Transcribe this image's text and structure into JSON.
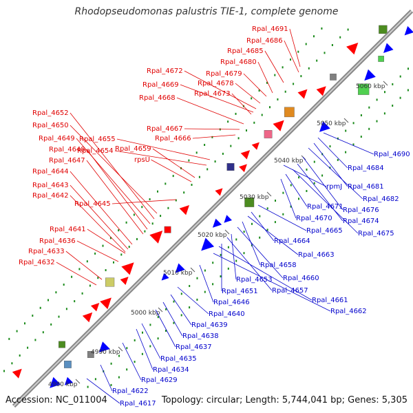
{
  "title": "Rhodopseudomonas palustris TIE-1, complete genome",
  "accession": "Accession: NC_011004",
  "topology": "Topology: circular; Length: 5,744,041 bp; Genes: 5,305",
  "colors": {
    "forward_label": "#e00000",
    "reverse_label": "#0000cc",
    "forward_arrow": "#ff0000",
    "reverse_arrow": "#0000ff",
    "backbone": "#888888",
    "gc_dots": "#1a8a1a"
  },
  "ticks": [
    "4980 kbp",
    "4990 kbp",
    "5000 kbp",
    "5010 kbp",
    "5020 kbp",
    "5030 kbp",
    "5040 kbp",
    "5050 kbp",
    "5060 kbp"
  ],
  "forward_genes": [
    "Rpal_4691",
    "Rpal_4686",
    "Rpal_4685",
    "Rpal_4680",
    "Rpal_4679",
    "Rpal_4678",
    "Rpal_4672",
    "Rpal_4669",
    "Rpal_4673",
    "Rpal_4668",
    "Rpal_4667",
    "Rpal_4666",
    "rpsU",
    "Rpal_4659",
    "Rpal_4655",
    "Rpal_4654",
    "Rpal_4652",
    "Rpal_4650",
    "Rpal_4649",
    "Rpal_4648",
    "Rpal_4647",
    "Rpal_4644",
    "Rpal_4643",
    "Rpal_4642",
    "Rpal_4645",
    "Rpal_4641",
    "Rpal_4636",
    "Rpal_4633",
    "Rpal_4632"
  ],
  "reverse_genes": [
    "Rpal_4690",
    "Rpal_4684",
    "Rpal_4681",
    "Rpal_4682",
    "rpmJ",
    "Rpal_4676",
    "Rpal_4671",
    "Rpal_4674",
    "Rpal_4670",
    "Rpal_4675",
    "Rpal_4665",
    "Rpal_4664",
    "Rpal_4663",
    "Rpal_4658",
    "Rpal_4660",
    "Rpal_4653",
    "Rpal_4657",
    "Rpal_4651",
    "Rpal_4661",
    "Rpal_4646",
    "Rpal_4662",
    "Rpal_4640",
    "Rpal_4639",
    "Rpal_4638",
    "Rpal_4637",
    "Rpal_4635",
    "Rpal_4634",
    "Rpal_4629",
    "Rpal_4622",
    "Rpal_4617"
  ]
}
